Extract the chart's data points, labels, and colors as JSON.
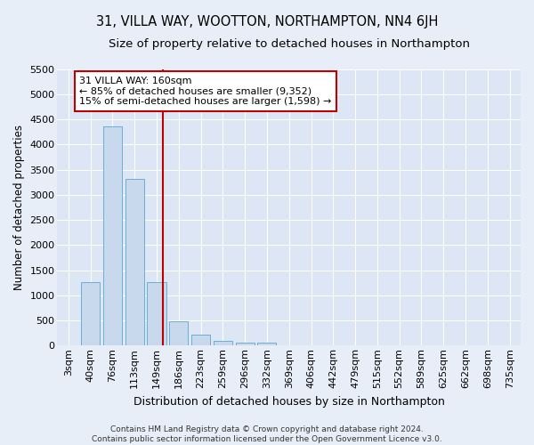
{
  "title": "31, VILLA WAY, WOOTTON, NORTHAMPTON, NN4 6JH",
  "subtitle": "Size of property relative to detached houses in Northampton",
  "xlabel": "Distribution of detached houses by size in Northampton",
  "ylabel": "Number of detached properties",
  "footer_line1": "Contains HM Land Registry data © Crown copyright and database right 2024.",
  "footer_line2": "Contains public sector information licensed under the Open Government Licence v3.0.",
  "bar_labels": [
    "3sqm",
    "40sqm",
    "76sqm",
    "113sqm",
    "149sqm",
    "186sqm",
    "223sqm",
    "259sqm",
    "296sqm",
    "332sqm",
    "369sqm",
    "406sqm",
    "442sqm",
    "479sqm",
    "515sqm",
    "552sqm",
    "589sqm",
    "625sqm",
    "662sqm",
    "698sqm",
    "735sqm"
  ],
  "bar_values": [
    0,
    1270,
    4350,
    3310,
    1270,
    490,
    215,
    90,
    60,
    55,
    0,
    0,
    0,
    0,
    0,
    0,
    0,
    0,
    0,
    0,
    0
  ],
  "bar_color": "#c8d9ee",
  "bar_edge_color": "#6baed6",
  "vline_color": "#c00000",
  "annotation_line1": "31 VILLA WAY: 160sqm",
  "annotation_line2": "← 85% of detached houses are smaller (9,352)",
  "annotation_line3": "15% of semi-detached houses are larger (1,598) →",
  "annotation_box_color": "#ffffff",
  "annotation_box_edge_color": "#c00000",
  "ylim": [
    0,
    5500
  ],
  "yticks": [
    0,
    500,
    1000,
    1500,
    2000,
    2500,
    3000,
    3500,
    4000,
    4500,
    5000,
    5500
  ],
  "bg_color": "#e8eef7",
  "plot_bg_color": "#dce6f4",
  "title_fontsize": 10.5,
  "subtitle_fontsize": 9.5,
  "xlabel_fontsize": 9,
  "ylabel_fontsize": 8.5,
  "tick_fontsize": 8,
  "annotation_fontsize": 8,
  "footer_fontsize": 6.5
}
